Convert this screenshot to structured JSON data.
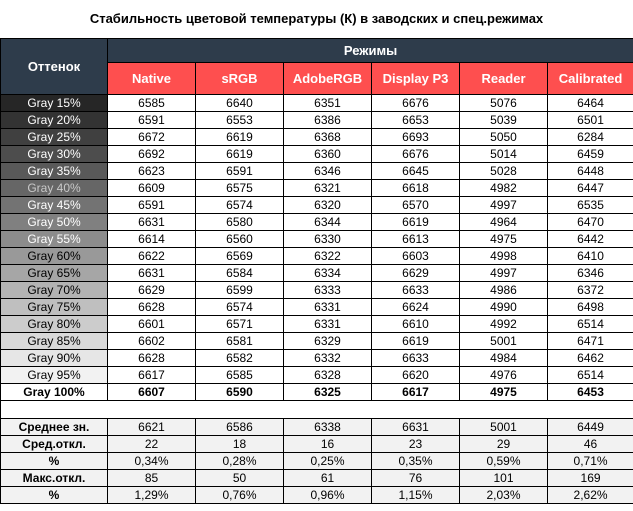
{
  "title": "Стабильность цветовой температуры (К) в заводских и спец.режимах",
  "header": {
    "shade_label": "Оттенок",
    "modes_label": "Режимы",
    "modes": [
      "Native",
      "sRGB",
      "AdobeRGB",
      "Display P3",
      "Reader",
      "Calibrated"
    ]
  },
  "colors": {
    "header_dark": "#2e3c4b",
    "header_red": "#fe4f4f"
  },
  "rows": [
    {
      "shade": "Gray 15%",
      "bg": "#262626",
      "fg": "#ffffff",
      "values": [
        "6585",
        "6640",
        "6351",
        "6676",
        "5076",
        "6464"
      ]
    },
    {
      "shade": "Gray 20%",
      "bg": "#333333",
      "fg": "#ffffff",
      "values": [
        "6591",
        "6553",
        "6386",
        "6653",
        "5039",
        "6501"
      ]
    },
    {
      "shade": "Gray 25%",
      "bg": "#404040",
      "fg": "#ffffff",
      "values": [
        "6672",
        "6619",
        "6368",
        "6693",
        "5050",
        "6284"
      ]
    },
    {
      "shade": "Gray 30%",
      "bg": "#4d4d4d",
      "fg": "#ffffff",
      "values": [
        "6692",
        "6619",
        "6360",
        "6676",
        "5014",
        "6459"
      ]
    },
    {
      "shade": "Gray 35%",
      "bg": "#595959",
      "fg": "#ffffff",
      "values": [
        "6623",
        "6591",
        "6346",
        "6645",
        "5028",
        "6448"
      ]
    },
    {
      "shade": "Gray 40%",
      "bg": "#666666",
      "fg": "#c8c8c8",
      "values": [
        "6609",
        "6575",
        "6321",
        "6618",
        "4982",
        "6447"
      ]
    },
    {
      "shade": "Gray 45%",
      "bg": "#737373",
      "fg": "#ffffff",
      "values": [
        "6591",
        "6574",
        "6320",
        "6570",
        "4997",
        "6535"
      ]
    },
    {
      "shade": "Gray 50%",
      "bg": "#808080",
      "fg": "#ffffff",
      "values": [
        "6631",
        "6580",
        "6344",
        "6619",
        "4964",
        "6470"
      ]
    },
    {
      "shade": "Gray 55%",
      "bg": "#8c8c8c",
      "fg": "#ffffff",
      "values": [
        "6614",
        "6560",
        "6330",
        "6613",
        "4975",
        "6442"
      ]
    },
    {
      "shade": "Gray 60%",
      "bg": "#999999",
      "fg": "#000000",
      "values": [
        "6622",
        "6569",
        "6322",
        "6603",
        "4998",
        "6410"
      ]
    },
    {
      "shade": "Gray 65%",
      "bg": "#a6a6a6",
      "fg": "#000000",
      "values": [
        "6631",
        "6584",
        "6334",
        "6629",
        "4997",
        "6346"
      ]
    },
    {
      "shade": "Gray 70%",
      "bg": "#b3b3b3",
      "fg": "#000000",
      "values": [
        "6629",
        "6599",
        "6333",
        "6633",
        "4986",
        "6372"
      ]
    },
    {
      "shade": "Gray 75%",
      "bg": "#bfbfbf",
      "fg": "#000000",
      "values": [
        "6628",
        "6574",
        "6331",
        "6624",
        "4990",
        "6498"
      ]
    },
    {
      "shade": "Gray 80%",
      "bg": "#cccccc",
      "fg": "#000000",
      "values": [
        "6601",
        "6571",
        "6331",
        "6610",
        "4992",
        "6514"
      ]
    },
    {
      "shade": "Gray 85%",
      "bg": "#d9d9d9",
      "fg": "#000000",
      "values": [
        "6602",
        "6581",
        "6329",
        "6619",
        "5001",
        "6471"
      ]
    },
    {
      "shade": "Gray 90%",
      "bg": "#e6e6e6",
      "fg": "#000000",
      "values": [
        "6628",
        "6582",
        "6332",
        "6633",
        "4984",
        "6462"
      ]
    },
    {
      "shade": "Gray 95%",
      "bg": "#f2f2f2",
      "fg": "#000000",
      "values": [
        "6617",
        "6585",
        "6328",
        "6620",
        "4976",
        "6514"
      ]
    },
    {
      "shade": "Gray 100%",
      "bg": "#ffffff",
      "fg": "#000000",
      "bold": true,
      "values": [
        "6607",
        "6590",
        "6325",
        "6617",
        "4975",
        "6453"
      ]
    }
  ],
  "stats": [
    {
      "label": "Среднее зн.",
      "values": [
        "6621",
        "6586",
        "6338",
        "6631",
        "5001",
        "6449"
      ]
    },
    {
      "label": "Сред.откл.",
      "values": [
        "22",
        "18",
        "16",
        "23",
        "29",
        "46"
      ]
    },
    {
      "label": "%",
      "values": [
        "0,34%",
        "0,28%",
        "0,25%",
        "0,35%",
        "0,59%",
        "0,71%"
      ]
    },
    {
      "label": "Макс.откл.",
      "values": [
        "85",
        "50",
        "61",
        "76",
        "101",
        "169"
      ]
    },
    {
      "label": "%",
      "values": [
        "1,29%",
        "0,76%",
        "0,96%",
        "1,15%",
        "2,03%",
        "2,62%"
      ]
    }
  ]
}
